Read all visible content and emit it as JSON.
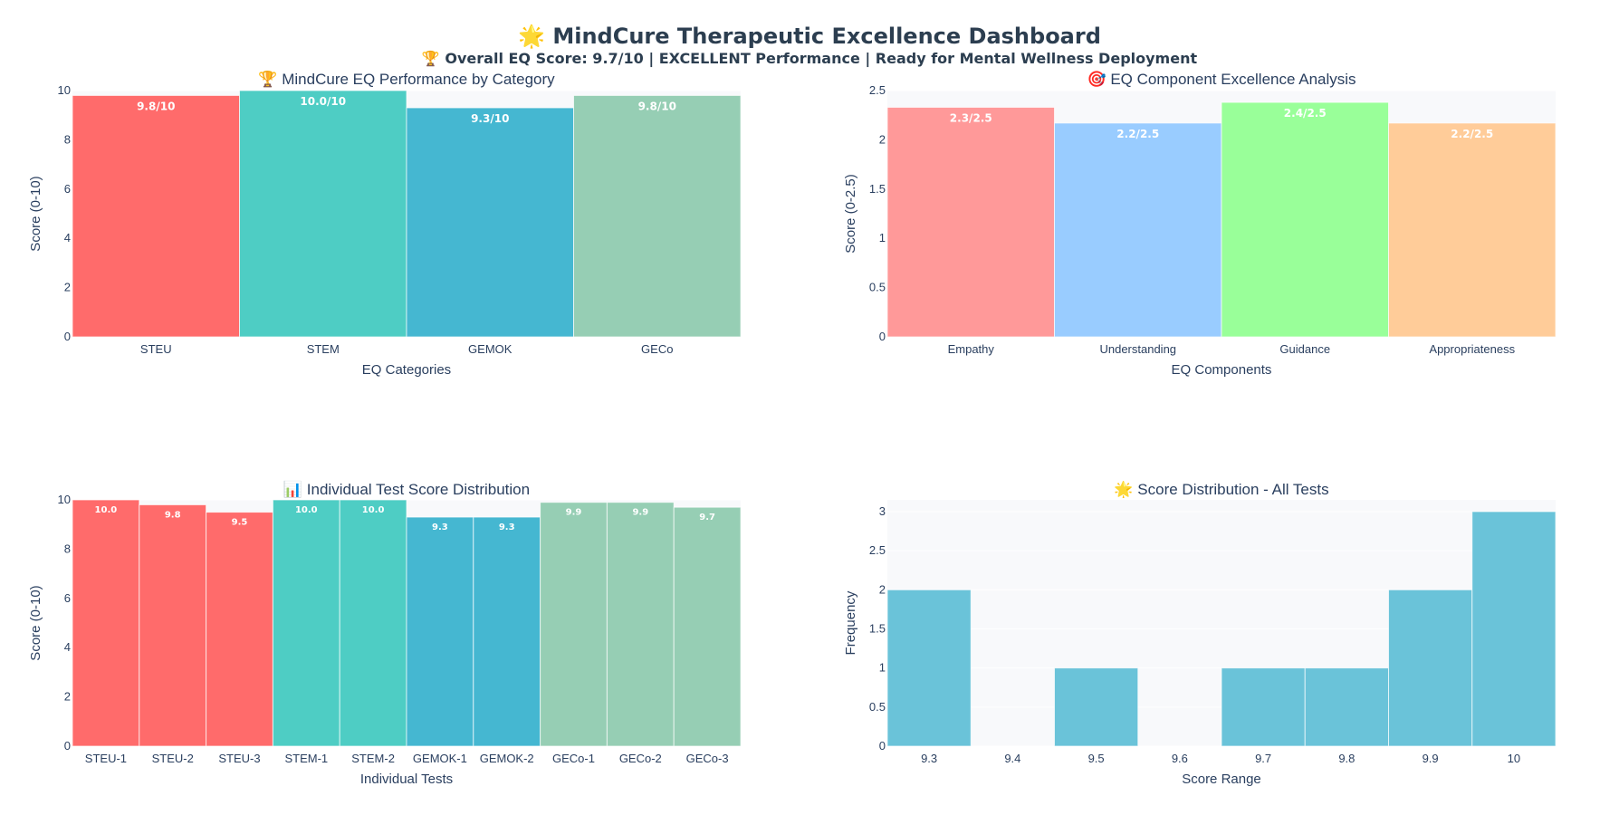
{
  "header": {
    "title": "🌟 MindCure Therapeutic Excellence Dashboard",
    "subtitle": "🏆 Overall EQ Score: 9.7/10 | EXCELLENT Performance | Ready for Mental Wellness Deployment"
  },
  "colors": {
    "plot_bg": "#f8f9fb",
    "grid": "#ffffff",
    "steu": "#ff6b6b",
    "stem": "#4ecdc4",
    "gemok": "#45b7d1",
    "geco": "#96ceb4",
    "empathy": "#ff9999",
    "understanding": "#99ccff",
    "guidance": "#99ff99",
    "appropriateness": "#ffcc99",
    "histogram": "#6ac3d9"
  },
  "chart_data": [
    {
      "id": "category",
      "type": "bar",
      "title": "🏆 MindCure EQ Performance by Category",
      "xlabel": "EQ Categories",
      "ylabel": "Score (0-10)",
      "ylim": [
        0,
        10
      ],
      "yticks": [
        "0",
        "2",
        "4",
        "6",
        "8",
        "10"
      ],
      "grid": true,
      "categories": [
        "STEU",
        "STEM",
        "GEMOK",
        "GECo"
      ],
      "values": [
        9.8,
        10.0,
        9.3,
        9.8
      ],
      "labels": [
        "9.8/10",
        "10.0/10",
        "9.3/10",
        "9.8/10"
      ],
      "colors": [
        "#ff6b6b",
        "#4ecdc4",
        "#45b7d1",
        "#96ceb4"
      ]
    },
    {
      "id": "component",
      "type": "bar",
      "title": "🎯 EQ Component Excellence Analysis",
      "xlabel": "EQ Components",
      "ylabel": "Score (0-2.5)",
      "ylim": [
        0,
        2.5
      ],
      "yticks": [
        "0",
        "0.5",
        "1",
        "1.5",
        "2",
        "2.5"
      ],
      "grid": true,
      "categories": [
        "Empathy",
        "Understanding",
        "Guidance",
        "Appropriateness"
      ],
      "values": [
        2.33,
        2.17,
        2.38,
        2.17
      ],
      "labels": [
        "2.3/2.5",
        "2.2/2.5",
        "2.4/2.5",
        "2.2/2.5"
      ],
      "colors": [
        "#ff9999",
        "#99ccff",
        "#99ff99",
        "#ffcc99"
      ]
    },
    {
      "id": "individual",
      "type": "bar",
      "title": "📊 Individual Test Score Distribution",
      "xlabel": "Individual Tests",
      "ylabel": "Score (0-10)",
      "ylim": [
        0,
        10
      ],
      "yticks": [
        "0",
        "2",
        "4",
        "6",
        "8",
        "10"
      ],
      "grid": true,
      "categories": [
        "STEU-1",
        "STEU-2",
        "STEU-3",
        "STEM-1",
        "STEM-2",
        "GEMOK-1",
        "GEMOK-2",
        "GECo-1",
        "GECo-2",
        "GECo-3"
      ],
      "values": [
        10.0,
        9.8,
        9.5,
        10.0,
        10.0,
        9.3,
        9.3,
        9.9,
        9.9,
        9.7
      ],
      "labels": [
        "10.0",
        "9.8",
        "9.5",
        "10.0",
        "10.0",
        "9.3",
        "9.3",
        "9.9",
        "9.9",
        "9.7"
      ],
      "colors": [
        "#ff6b6b",
        "#ff6b6b",
        "#ff6b6b",
        "#4ecdc4",
        "#4ecdc4",
        "#45b7d1",
        "#45b7d1",
        "#96ceb4",
        "#96ceb4",
        "#96ceb4"
      ]
    },
    {
      "id": "histogram",
      "type": "bar",
      "title": "🌟 Score Distribution - All Tests",
      "xlabel": "Score Range",
      "ylabel": "Frequency",
      "ylim": [
        0,
        3.15
      ],
      "yticks": [
        "0",
        "0.5",
        "1",
        "1.5",
        "2",
        "2.5",
        "3"
      ],
      "grid": true,
      "categories": [
        "9.3",
        "9.4",
        "9.5",
        "9.6",
        "9.7",
        "9.8",
        "9.9",
        "10"
      ],
      "values": [
        2,
        0,
        1,
        0,
        1,
        1,
        2,
        3
      ],
      "labels": [],
      "colors": [
        "#6ac3d9",
        "#6ac3d9",
        "#6ac3d9",
        "#6ac3d9",
        "#6ac3d9",
        "#6ac3d9",
        "#6ac3d9",
        "#6ac3d9"
      ]
    }
  ]
}
